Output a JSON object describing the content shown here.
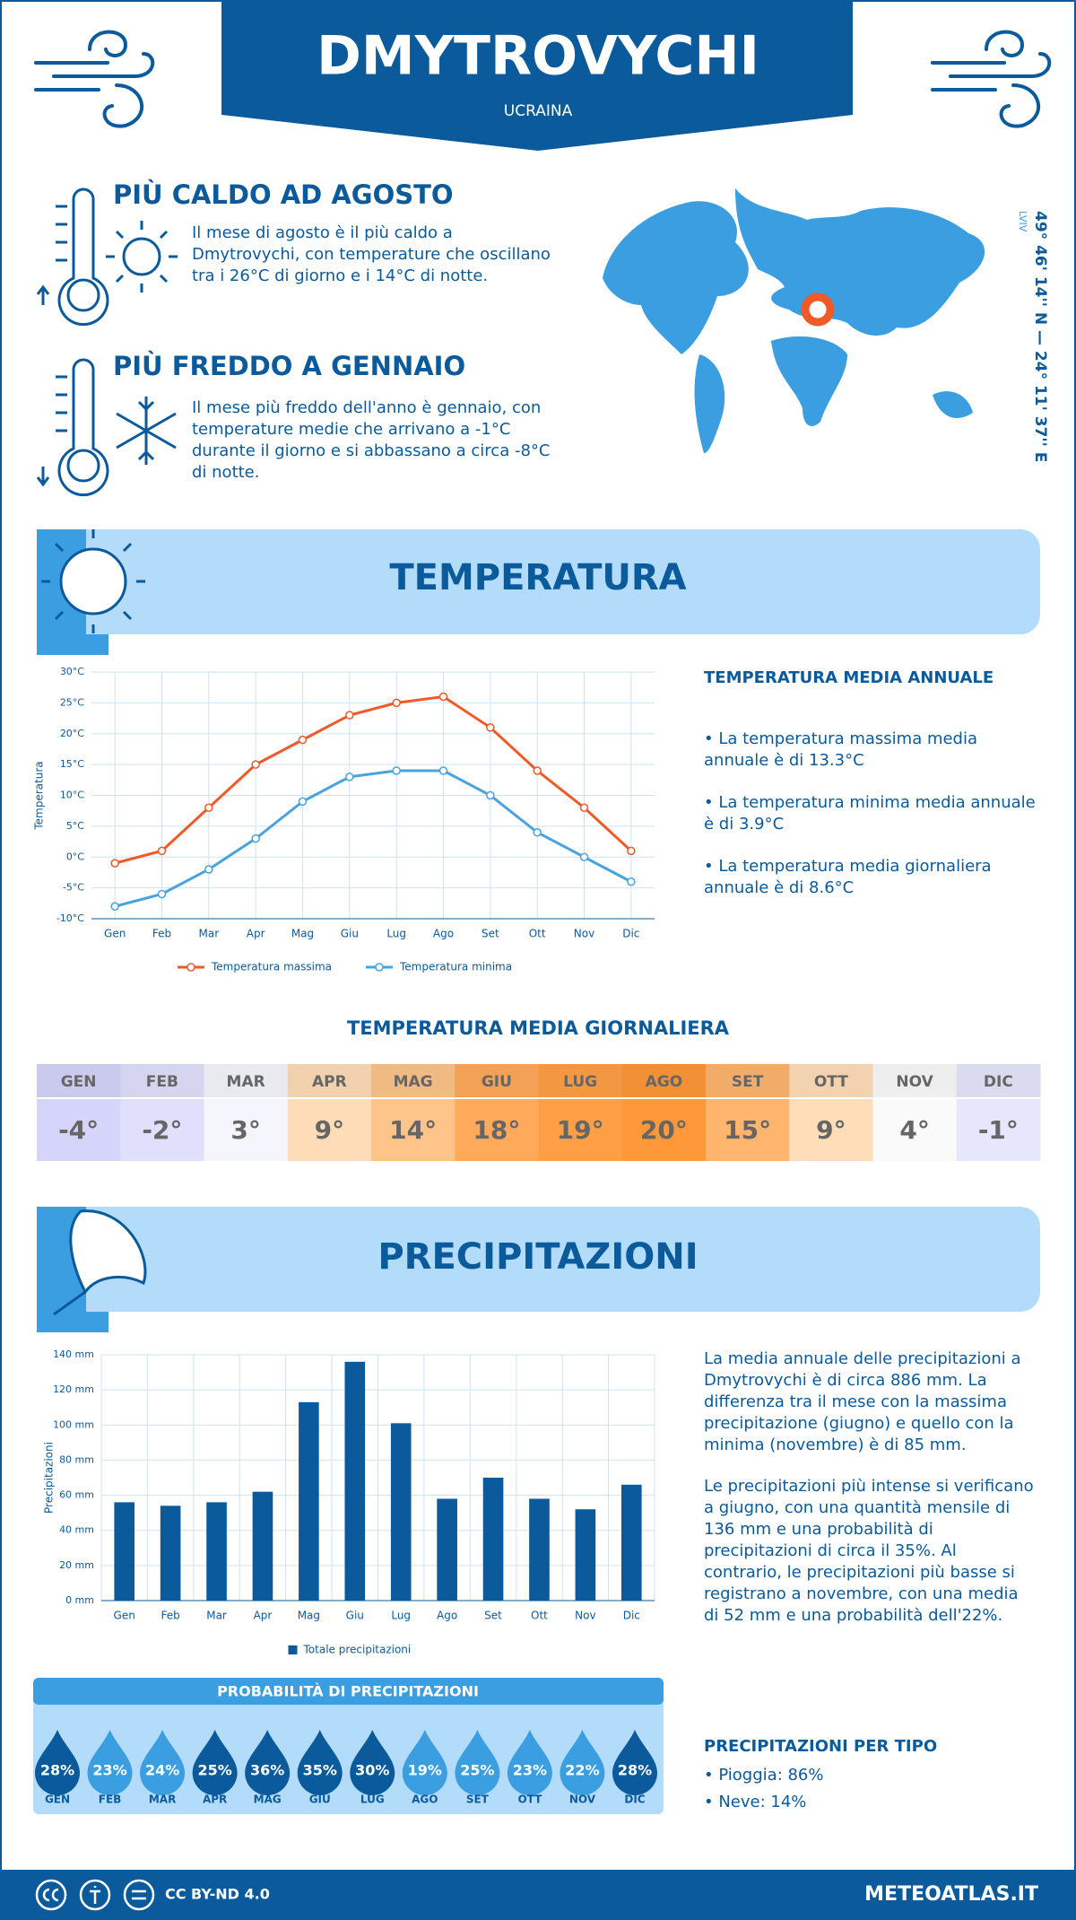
{
  "header": {
    "title": "DMYTROVYCHI",
    "subtitle": "UCRAINA"
  },
  "highlights": [
    {
      "title": "PIÙ CALDO AD AGOSTO",
      "text": "Il mese di agosto è il più caldo a Dmytrovychi, con temperature che oscillano tra i 26°C di giorno e i 14°C di notte."
    },
    {
      "title": "PIÙ FREDDO A GENNAIO",
      "text": "Il mese più freddo dell'anno è gennaio, con temperature medie che arrivano a -1°C durante il giorno e si abbassano a circa -8°C di notte."
    }
  ],
  "location": {
    "region": "LVIV",
    "coordinates": "49° 46' 14'' N — 24° 11' 37'' E"
  },
  "temperature_section": {
    "title": "TEMPERATURA",
    "summary_title": "TEMPERATURA MEDIA ANNUALE",
    "bullets": [
      "• La temperatura massima media annuale è di 13.3°C",
      "• La temperatura minima media annuale è di 3.9°C",
      "• La temperatura media giornaliera annuale è di 8.6°C"
    ]
  },
  "chart_data": [
    {
      "type": "line",
      "y_label": "Temperatura",
      "grid": true,
      "categories": [
        "Gen",
        "Feb",
        "Mar",
        "Apr",
        "Mag",
        "Giu",
        "Lug",
        "Ago",
        "Set",
        "Ott",
        "Nov",
        "Dic"
      ],
      "series": [
        {
          "name": "Temperatura massima",
          "color": "#f05a28",
          "values": [
            -1,
            1,
            8,
            15,
            19,
            23,
            25,
            26,
            21,
            14,
            8,
            1
          ]
        },
        {
          "name": "Temperatura minima",
          "color": "#4aa3df",
          "values": [
            -8,
            -6,
            -2,
            3,
            9,
            13,
            14,
            14,
            10,
            4,
            0,
            -4
          ]
        }
      ],
      "ylim": [
        -10,
        30
      ],
      "yticks": [
        {
          "value": -10,
          "label": "-10°C"
        },
        {
          "value": -5,
          "label": "-5°C"
        },
        {
          "value": 0,
          "label": "0°C"
        },
        {
          "value": 5,
          "label": "5°C"
        },
        {
          "value": 10,
          "label": "10°C"
        },
        {
          "value": 15,
          "label": "15°C"
        },
        {
          "value": 20,
          "label": "20°C"
        },
        {
          "value": 25,
          "label": "25°C"
        },
        {
          "value": 30,
          "label": "30°C"
        }
      ]
    },
    {
      "type": "bar",
      "y_label": "Precipitazioni",
      "grid": true,
      "categories": [
        "Gen",
        "Feb",
        "Mar",
        "Apr",
        "Mag",
        "Giu",
        "Lug",
        "Ago",
        "Set",
        "Ott",
        "Nov",
        "Dic"
      ],
      "series": [
        {
          "name": "Totale precipitazioni",
          "color": "#0a5a9c",
          "values": [
            56,
            54,
            56,
            62,
            113,
            136,
            101,
            58,
            70,
            58,
            52,
            66
          ]
        }
      ],
      "ylim": [
        0,
        140
      ],
      "yticks": [
        {
          "value": 0,
          "label": "0 mm"
        },
        {
          "value": 20,
          "label": "20 mm"
        },
        {
          "value": 40,
          "label": "40 mm"
        },
        {
          "value": 60,
          "label": "60 mm"
        },
        {
          "value": 80,
          "label": "80 mm"
        },
        {
          "value": 100,
          "label": "100 mm"
        },
        {
          "value": 120,
          "label": "120 mm"
        },
        {
          "value": 140,
          "label": "140 mm"
        }
      ]
    }
  ],
  "daily_temperature": {
    "title": "TEMPERATURA MEDIA GIORNALIERA",
    "months": [
      "GEN",
      "FEB",
      "MAR",
      "APR",
      "MAG",
      "GIU",
      "LUG",
      "AGO",
      "SET",
      "OTT",
      "NOV",
      "DIC"
    ],
    "values": [
      "-4°",
      "-2°",
      "3°",
      "9°",
      "14°",
      "18°",
      "19°",
      "20°",
      "15°",
      "9°",
      "4°",
      "-1°"
    ],
    "colors": [
      "#d5d5fb",
      "#e0e0fc",
      "#f5f5fd",
      "#ffdcb8",
      "#ffc48a",
      "#ffa95a",
      "#ff9f45",
      "#ff9838",
      "#ffb56e",
      "#ffddb8",
      "#fafafa",
      "#e6e6fc"
    ]
  },
  "precipitation_section": {
    "title": "PRECIPITAZIONI",
    "paragraphs": [
      "La media annuale delle precipitazioni a Dmytrovychi è di circa 886 mm. La differenza tra il mese con la massima precipitazione (giugno) e quello con la minima (novembre) è di 85 mm.",
      "Le precipitazioni più intense si verificano a giugno, con una quantità mensile di 136 mm e una probabilità di precipitazioni di circa il 35%. Al contrario, le precipitazioni più basse si registrano a novembre, con una media di 52 mm e una probabilità dell'22%."
    ],
    "type_title": "PRECIPITAZIONI PER TIPO",
    "types": [
      "• Pioggia: 86%",
      "• Neve: 14%"
    ]
  },
  "precip_probability": {
    "title": "PROBABILITÀ DI PRECIPITAZIONI",
    "months": [
      "GEN",
      "FEB",
      "MAR",
      "APR",
      "MAG",
      "GIU",
      "LUG",
      "AGO",
      "SET",
      "OTT",
      "NOV",
      "DIC"
    ],
    "values": [
      "28%",
      "23%",
      "24%",
      "25%",
      "36%",
      "35%",
      "30%",
      "19%",
      "25%",
      "23%",
      "22%",
      "28%"
    ],
    "colors": [
      "#0a5a9c",
      "#3a9ee0",
      "#3a9ee0",
      "#0a5a9c",
      "#0a5a9c",
      "#0a5a9c",
      "#0a5a9c",
      "#3a9ee0",
      "#3a9ee0",
      "#3a9ee0",
      "#3a9ee0",
      "#0a5a9c"
    ]
  },
  "footer": {
    "license": "CC BY-ND 4.0",
    "site": "METEOATLAS.IT"
  }
}
